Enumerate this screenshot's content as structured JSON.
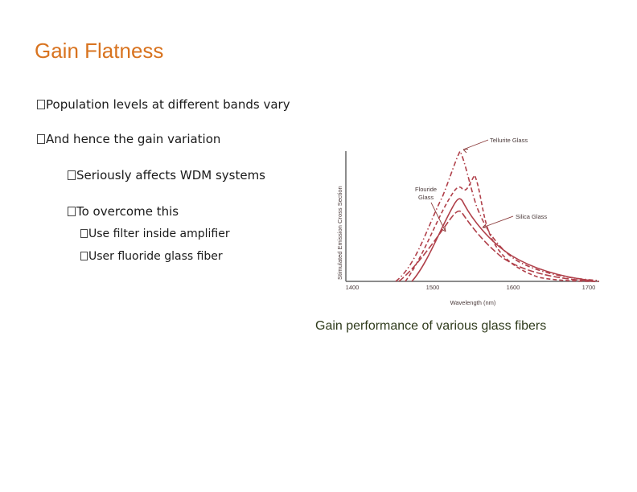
{
  "slide": {
    "title": "Gain Flatness",
    "bullets": [
      {
        "text": "Population levels at different bands vary",
        "level": 1
      },
      {
        "text": "And hence the gain variation",
        "level": 1
      },
      {
        "text": "Seriously affects WDM systems",
        "level": 2
      },
      {
        "text": "To overcome this",
        "level": 2
      },
      {
        "text": "Use filter inside amplifier",
        "level": 3
      },
      {
        "text": "User fluoride glass fiber",
        "level": 3
      }
    ],
    "caption": "Gain performance of various glass fibers"
  },
  "figure": {
    "ylabel": "Stimulated Emission Cross Section",
    "xlabel": "Wavelength (nm)",
    "xticks": [
      "1400",
      "1500",
      "1600",
      "1700"
    ],
    "labels": {
      "tellurite": "Tellurite Glass",
      "fluoride_line1": "Flouride",
      "fluoride_line2": "Glass",
      "silica": "Silica Glass"
    },
    "curve_color": "#b0404a"
  }
}
